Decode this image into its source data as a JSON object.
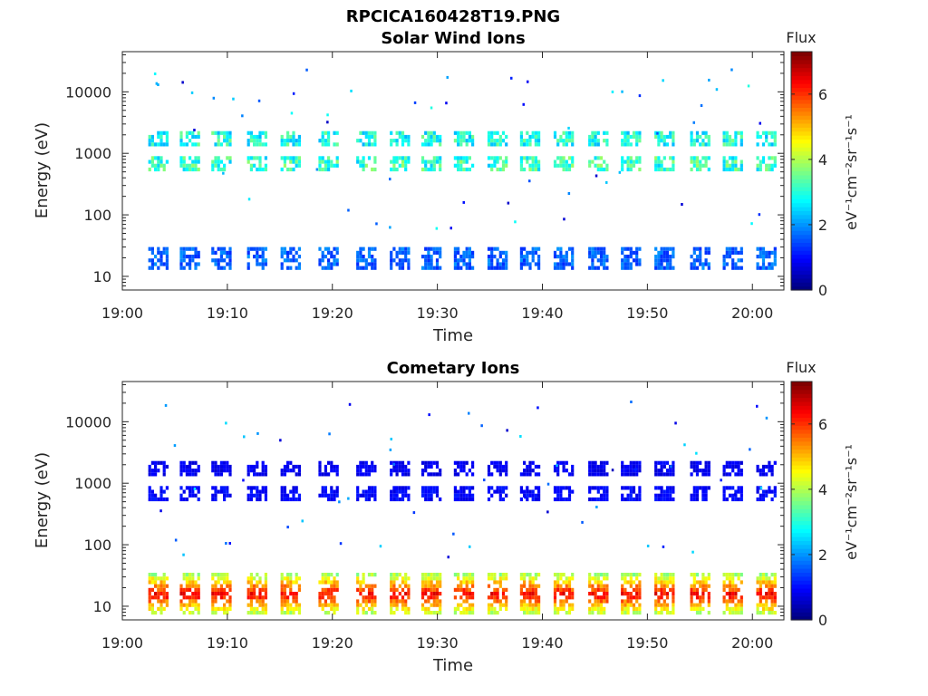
{
  "figure": {
    "title": "RPCICA160428T19.PNG"
  },
  "chart_data": [
    {
      "type": "heatmap",
      "title": "Solar Wind Ions",
      "xlabel": "Time",
      "ylabel": "Energy (eV)",
      "y_scale": "log",
      "ylim": [
        6,
        45000
      ],
      "xlim": [
        "19:00",
        "20:03"
      ],
      "x_ticks": [
        "19:00",
        "19:10",
        "19:20",
        "19:30",
        "19:40",
        "19:50",
        "20:00"
      ],
      "y_ticks": [
        "10",
        "100",
        "1000",
        "10000"
      ],
      "colorbar": {
        "label": "Flux",
        "units": "eV⁻¹cm⁻²sr⁻¹s⁻¹",
        "range": [
          0,
          7.3
        ],
        "ticks": [
          "0",
          "2",
          "4",
          "6"
        ],
        "colormap": "jet"
      },
      "sweep_times_min": [
        3.3,
        6.3,
        9.3,
        12.7,
        15.9,
        19.5,
        23.1,
        26.3,
        29.3,
        32.4,
        35.6,
        38.7,
        41.9,
        45.2,
        48.3,
        51.5,
        54.9,
        58.0,
        61.2
      ],
      "bands": [
        {
          "energy_range_eV": [
            13,
            30
          ],
          "flux": 1.6
        },
        {
          "energy_range_eV": [
            550,
            900
          ],
          "flux": 3.1
        },
        {
          "energy_range_eV": [
            1400,
            2300
          ],
          "flux": 2.9
        }
      ]
    },
    {
      "type": "heatmap",
      "title": "Cometary Ions",
      "xlabel": "Time",
      "ylabel": "Energy (eV)",
      "y_scale": "log",
      "ylim": [
        6,
        45000
      ],
      "xlim": [
        "19:00",
        "20:03"
      ],
      "x_ticks": [
        "19:00",
        "19:10",
        "19:20",
        "19:30",
        "19:40",
        "19:50",
        "20:00"
      ],
      "y_ticks": [
        "10",
        "100",
        "1000",
        "10000"
      ],
      "colorbar": {
        "label": "Flux",
        "units": "eV⁻¹cm⁻²sr⁻¹s⁻¹",
        "range": [
          0,
          7.3
        ],
        "ticks": [
          "0",
          "2",
          "4",
          "6"
        ],
        "colormap": "jet"
      },
      "sweep_times_min": [
        3.3,
        6.3,
        9.3,
        12.7,
        15.9,
        19.5,
        23.1,
        26.3,
        29.3,
        32.4,
        35.6,
        38.7,
        41.9,
        45.2,
        48.3,
        51.5,
        54.9,
        58.0,
        61.2
      ],
      "bands": [
        {
          "energy_range_eV": [
            8,
            35
          ],
          "flux": 5.6
        },
        {
          "energy_range_eV": [
            550,
            900
          ],
          "flux": 0.9
        },
        {
          "energy_range_eV": [
            1400,
            2300
          ],
          "flux": 0.8
        }
      ]
    }
  ]
}
